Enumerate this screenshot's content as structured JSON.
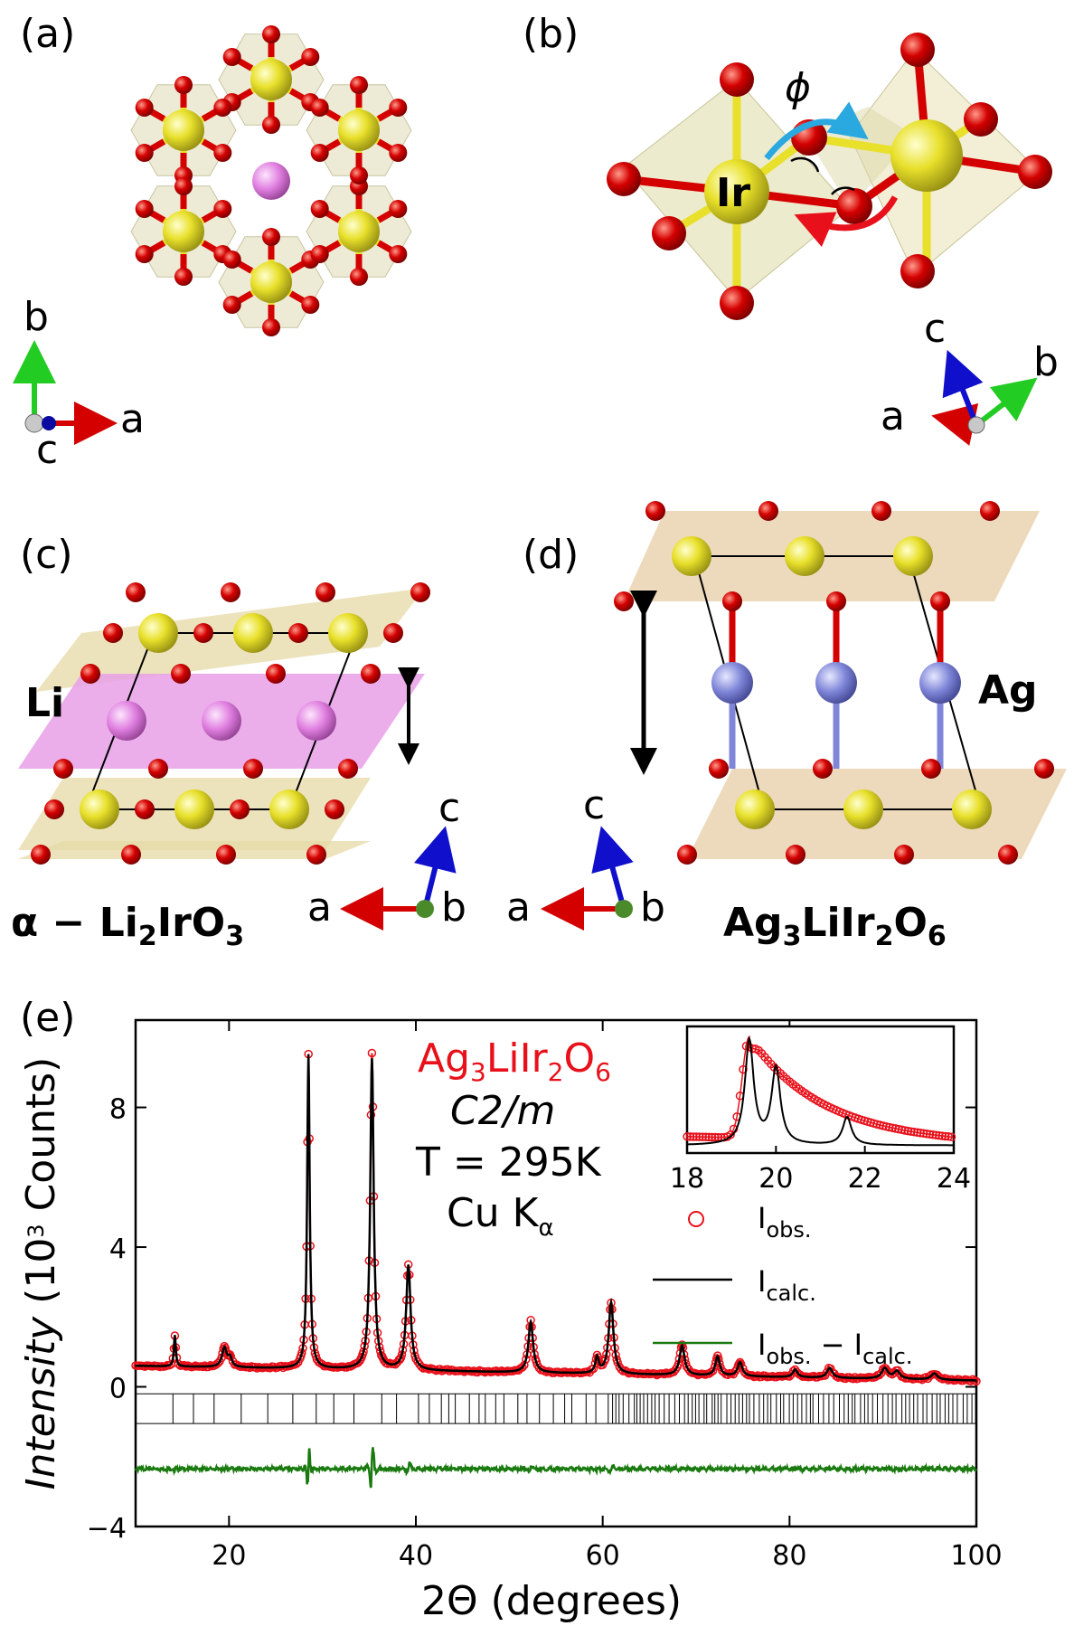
{
  "panels": {
    "a": {
      "label": "(a)",
      "axes": {
        "x": "a",
        "y": "b",
        "z": "c"
      }
    },
    "b": {
      "label": "(b)",
      "ion": "Ir",
      "angle": "ϕ",
      "axes": {
        "x": "a",
        "y": "b",
        "z": "c"
      }
    },
    "c": {
      "label": "(c)",
      "layer": "Li",
      "formula_parts": [
        "α − Li",
        "2",
        "IrO",
        "3"
      ],
      "axes": {
        "x": "a",
        "y": "b",
        "z": "c"
      }
    },
    "d": {
      "label": "(d)",
      "layer": "Ag",
      "formula_parts": [
        "Ag",
        "3",
        "LiIr",
        "2",
        "O",
        "6"
      ],
      "axes": {
        "x": "a",
        "y": "b",
        "z": "c"
      }
    },
    "e": {
      "label": "(e)"
    }
  },
  "colors": {
    "ir": "#e8e02a",
    "o": "#d40000",
    "li": "#e07fe0",
    "ag": "#7f86d8",
    "octa": "#e6e2b8",
    "obs": "#e8101a",
    "calc": "#000000",
    "diff": "#1a7a10"
  },
  "chart_data": {
    "type": "scatter",
    "title": "",
    "annotation": {
      "compound_parts": [
        "Ag",
        "3",
        "LiIr",
        "2",
        "O",
        "6"
      ],
      "space_group": "C2/m",
      "temperature": "T = 295K",
      "radiation_parts": [
        "Cu K",
        "α"
      ]
    },
    "xlabel": "2Θ (degrees)",
    "ylabel_parts": [
      "Intensity",
      " (10",
      "3",
      " Counts)"
    ],
    "xlim": [
      10,
      100
    ],
    "ylim": [
      -4,
      10.5
    ],
    "xticks": [
      "20",
      "40",
      "60",
      "80",
      "100"
    ],
    "yticks": [
      "−4",
      "0",
      "4",
      "8"
    ],
    "legend": [
      {
        "name_parts": [
          "I",
          "obs."
        ],
        "style": "open-circle"
      },
      {
        "name_parts": [
          "I",
          "calc."
        ],
        "style": "line"
      },
      {
        "name_parts": [
          "I",
          "obs.",
          " − I",
          "calc."
        ],
        "style": "line"
      }
    ],
    "peaks": [
      {
        "x": 14.2,
        "h": 0.9,
        "w": 0.12
      },
      {
        "x": 19.5,
        "h": 0.55,
        "w": 0.3
      },
      {
        "x": 20.1,
        "h": 0.25,
        "w": 0.25
      },
      {
        "x": 28.5,
        "h": 9.0,
        "w": 0.16
      },
      {
        "x": 35.3,
        "h": 8.9,
        "w": 0.22
      },
      {
        "x": 39.2,
        "h": 3.0,
        "w": 0.28
      },
      {
        "x": 52.3,
        "h": 1.45,
        "w": 0.3
      },
      {
        "x": 59.4,
        "h": 0.45,
        "w": 0.22
      },
      {
        "x": 60.9,
        "h": 2.05,
        "w": 0.3
      },
      {
        "x": 68.5,
        "h": 0.85,
        "w": 0.32
      },
      {
        "x": 72.3,
        "h": 0.55,
        "w": 0.28
      },
      {
        "x": 74.7,
        "h": 0.4,
        "w": 0.3
      },
      {
        "x": 80.6,
        "h": 0.22,
        "w": 0.3
      },
      {
        "x": 84.3,
        "h": 0.28,
        "w": 0.35
      },
      {
        "x": 90.2,
        "h": 0.3,
        "w": 0.4
      },
      {
        "x": 91.5,
        "h": 0.22,
        "w": 0.4
      },
      {
        "x": 95.5,
        "h": 0.18,
        "w": 0.4
      }
    ],
    "background": {
      "start": 0.6,
      "end": 0.18
    },
    "bragg_band": [
      -0.2,
      -1.05
    ],
    "difference_offset": -2.35,
    "inset": {
      "xlim": [
        18,
        24
      ],
      "xticks": [
        "18",
        "20",
        "22",
        "24"
      ],
      "obs_peak": 19.4,
      "calc_peaks": [
        19.4,
        20.0,
        21.6
      ]
    }
  }
}
